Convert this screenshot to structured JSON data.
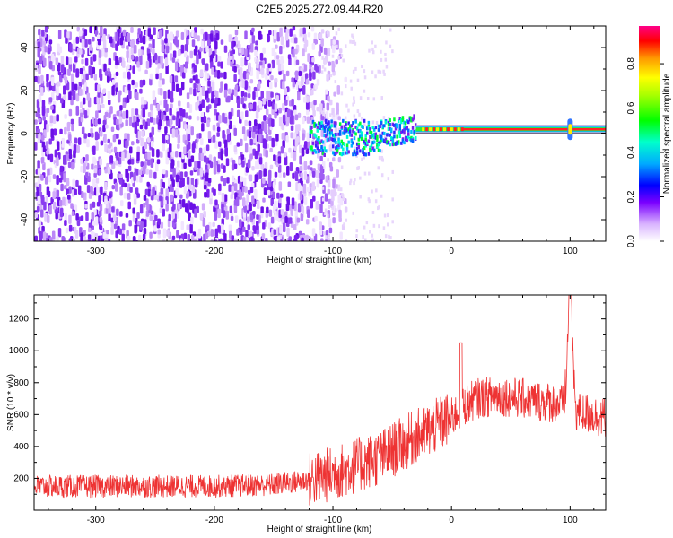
{
  "title": "C2E5.2025.272.09.44.R20",
  "chart_data": [
    {
      "type": "heatmap",
      "title": "C2E5.2025.272.09.44.R20",
      "xlabel": "Height of straight line (km)",
      "ylabel": "Frequency (Hz)",
      "xlim": [
        -352,
        130
      ],
      "ylim": [
        -50,
        50
      ],
      "x_ticks": [
        "-300",
        "-200",
        "-100",
        "0",
        "100"
      ],
      "y_ticks": [
        "40",
        "20",
        "0",
        "-20",
        "-40"
      ],
      "colorbar": {
        "label": "Normalized spectral amplitude",
        "range": [
          0.0,
          0.97
        ],
        "ticks": [
          "0.0",
          "0.2",
          "0.4",
          "0.6",
          "0.8"
        ]
      },
      "features": {
        "noise_region_x": [
          -352,
          -110
        ],
        "signal_line_frequency_hz": 2,
        "signal_onset_x": -120,
        "spike_x": 100
      }
    },
    {
      "type": "line",
      "xlabel": "Height of straight line (km)",
      "ylabel": "SNR (10 * v/v)",
      "xlim": [
        -352,
        130
      ],
      "ylim": [
        0,
        1350
      ],
      "x_ticks": [
        "-300",
        "-200",
        "-100",
        "0",
        "100"
      ],
      "y_ticks": [
        "200",
        "400",
        "600",
        "800",
        "1000",
        "1200"
      ],
      "color": "#ee3333",
      "series": [
        {
          "name": "SNR",
          "x": [
            -352,
            -300,
            -250,
            -200,
            -150,
            -120,
            -100,
            -80,
            -60,
            -40,
            -20,
            0,
            10,
            20,
            40,
            60,
            80,
            95,
            100,
            105,
            130
          ],
          "values": [
            150,
            150,
            150,
            150,
            160,
            190,
            230,
            280,
            330,
            420,
            500,
            580,
            650,
            700,
            720,
            700,
            680,
            660,
            1350,
            620,
            580
          ]
        }
      ]
    }
  ]
}
